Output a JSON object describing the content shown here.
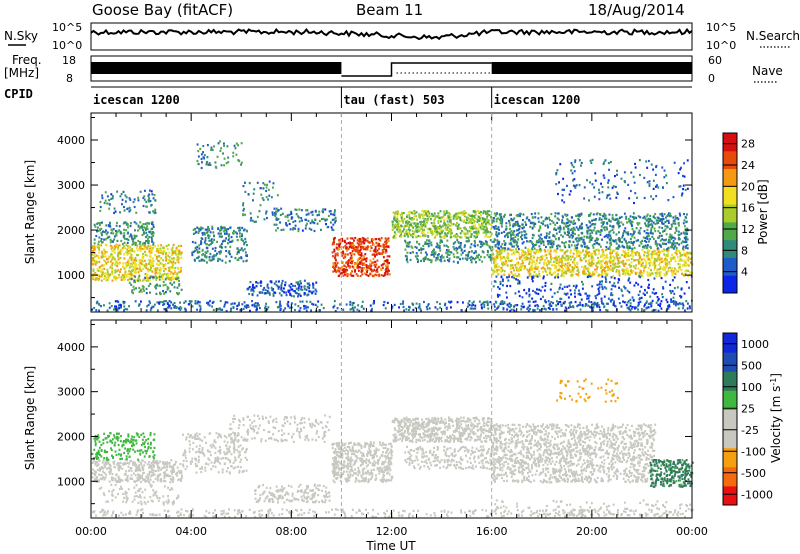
{
  "header": {
    "station": "Goose Bay (fitACF)",
    "beam": "Beam 11",
    "date": "18/Aug/2014"
  },
  "top_panels": {
    "nsky_label": "N.Sky",
    "nsearch_label": "N.Search",
    "nsky_ticks": [
      "10^5",
      "10^0"
    ],
    "nsearch_ticks": [
      "10^5",
      "10^0"
    ],
    "freq_label_1": "Freq.",
    "freq_label_2": "[MHz]",
    "freq_ticks": [
      "18",
      "8"
    ],
    "nave_label": "Nave",
    "nave_ticks": [
      "60",
      "0"
    ],
    "cpid_label": "CPID",
    "cpid_segments": [
      {
        "name": "icescan 1200",
        "start": 0,
        "end": 10
      },
      {
        "name": "tau (fast) 503",
        "start": 10,
        "end": 16
      },
      {
        "name": "icescan 1200",
        "start": 16,
        "end": 24
      }
    ]
  },
  "chart_data": [
    {
      "type": "heatmap",
      "title": "",
      "xlabel": "",
      "ylabel": "Slant Range [km]",
      "xlim": [
        0,
        24
      ],
      "ylim": [
        180,
        4600
      ],
      "yticks": [
        "1000",
        "2000",
        "3000",
        "4000"
      ],
      "colorbar_label": "Power [dB]",
      "colorbar_ticks": [
        "4",
        "8",
        "12",
        "16",
        "20",
        "24",
        "28"
      ],
      "colorbar_range": [
        0,
        30
      ],
      "scale": [
        "#0b26e8",
        "#1f5cc8",
        "#2f8a7a",
        "#4fa84a",
        "#a8cc2a",
        "#f2e020",
        "#f59a10",
        "#e84a0a",
        "#d41010"
      ],
      "regions": [
        {
          "t0": 0.0,
          "t1": 3.6,
          "r0": 900,
          "r1": 1700,
          "v": 18,
          "d": 0.8
        },
        {
          "t0": 0.1,
          "t1": 2.5,
          "r0": 1700,
          "r1": 2200,
          "v": 9,
          "d": 0.55
        },
        {
          "t0": 0.3,
          "t1": 2.6,
          "r0": 2400,
          "r1": 2900,
          "v": 7,
          "d": 0.25
        },
        {
          "t0": 1.5,
          "t1": 3.6,
          "r0": 600,
          "r1": 1000,
          "v": 10,
          "d": 0.35
        },
        {
          "t0": 4.0,
          "t1": 6.2,
          "r0": 1300,
          "r1": 2100,
          "v": 8,
          "d": 0.5
        },
        {
          "t0": 4.2,
          "t1": 6.0,
          "r0": 3400,
          "r1": 4000,
          "v": 9,
          "d": 0.2
        },
        {
          "t0": 6.0,
          "t1": 7.5,
          "r0": 2200,
          "r1": 3100,
          "v": 8,
          "d": 0.15
        },
        {
          "t0": 6.2,
          "t1": 9.0,
          "r0": 550,
          "r1": 900,
          "v": 5,
          "d": 0.55
        },
        {
          "t0": 7.2,
          "t1": 9.8,
          "r0": 2000,
          "r1": 2500,
          "v": 7,
          "d": 0.35
        },
        {
          "t0": 9.6,
          "t1": 11.9,
          "r0": 1000,
          "r1": 1850,
          "v": 26,
          "d": 0.85
        },
        {
          "t0": 12.0,
          "t1": 16.0,
          "r0": 1850,
          "r1": 2450,
          "v": 14,
          "d": 0.9
        },
        {
          "t0": 12.5,
          "t1": 16.0,
          "r0": 1300,
          "r1": 1800,
          "v": 9,
          "d": 0.5
        },
        {
          "t0": 16.0,
          "t1": 24.0,
          "r0": 1000,
          "r1": 1600,
          "v": 18,
          "d": 0.75
        },
        {
          "t0": 16.0,
          "t1": 23.8,
          "r0": 1600,
          "r1": 2400,
          "v": 8,
          "d": 0.55
        },
        {
          "t0": 16.0,
          "t1": 24.0,
          "r0": 300,
          "r1": 1000,
          "v": 4,
          "d": 0.2
        },
        {
          "t0": 18.5,
          "t1": 23.8,
          "r0": 2600,
          "r1": 3600,
          "v": 5,
          "d": 0.1
        },
        {
          "t0": 0.0,
          "t1": 24.0,
          "r0": 180,
          "r1": 450,
          "v": 6,
          "d": 0.35
        }
      ]
    },
    {
      "type": "heatmap",
      "title": "",
      "xlabel": "Time UT",
      "ylabel": "Slant Range [km]",
      "xlim": [
        0,
        24
      ],
      "ylim": [
        180,
        4600
      ],
      "xticks": [
        "00:00",
        "04:00",
        "08:00",
        "12:00",
        "16:00",
        "20:00",
        "00:00"
      ],
      "yticks": [
        "1000",
        "2000",
        "3000",
        "4000"
      ],
      "colorbar_label": "Velocity [m s^-1]",
      "colorbar_ticks": [
        "1000",
        "500",
        "100",
        "25",
        "-25",
        "-100",
        "-500",
        "-1000"
      ],
      "colorbar_range": [
        -1250,
        1250
      ],
      "scale": [
        "#e81010",
        "#f56a10",
        "#f5a010",
        "#c8c8c0",
        "#c8c8c0",
        "#40b840",
        "#2f7a5a",
        "#1f4cb0",
        "#1028d8"
      ],
      "regions": [
        {
          "t0": 0.0,
          "t1": 3.6,
          "r0": 1000,
          "r1": 1500,
          "v": -150,
          "d": 0.75
        },
        {
          "t0": 0.0,
          "t1": 2.5,
          "r0": 1500,
          "r1": 2100,
          "v": 300,
          "d": 0.45
        },
        {
          "t0": 0.3,
          "t1": 3.5,
          "r0": 500,
          "r1": 950,
          "v": -200,
          "d": 0.25
        },
        {
          "t0": 3.6,
          "t1": 6.2,
          "r0": 1200,
          "r1": 2100,
          "v": 0,
          "d": 0.35
        },
        {
          "t0": 6.5,
          "t1": 9.5,
          "r0": 550,
          "r1": 950,
          "v": -200,
          "d": 0.5
        },
        {
          "t0": 5.5,
          "t1": 9.5,
          "r0": 1900,
          "r1": 2500,
          "v": 0,
          "d": 0.25
        },
        {
          "t0": 9.6,
          "t1": 12.0,
          "r0": 1000,
          "r1": 1900,
          "v": 0,
          "d": 0.8
        },
        {
          "t0": 12.0,
          "t1": 16.0,
          "r0": 1900,
          "r1": 2450,
          "v": 0,
          "d": 0.9
        },
        {
          "t0": 12.5,
          "t1": 16.0,
          "r0": 1300,
          "r1": 1800,
          "v": 0,
          "d": 0.45
        },
        {
          "t0": 16.0,
          "t1": 22.5,
          "r0": 1000,
          "r1": 2300,
          "v": 0,
          "d": 0.6
        },
        {
          "t0": 22.3,
          "t1": 24.0,
          "r0": 900,
          "r1": 1500,
          "v": 500,
          "d": 0.85
        },
        {
          "t0": 18.5,
          "t1": 21.0,
          "r0": 2800,
          "r1": 3300,
          "v": -600,
          "d": 0.15
        },
        {
          "t0": 16.0,
          "t1": 24.0,
          "r0": 250,
          "r1": 600,
          "v": -300,
          "d": 0.15
        },
        {
          "t0": 0.0,
          "t1": 24.0,
          "r0": 180,
          "r1": 400,
          "v": 0,
          "d": 0.3
        }
      ]
    }
  ]
}
